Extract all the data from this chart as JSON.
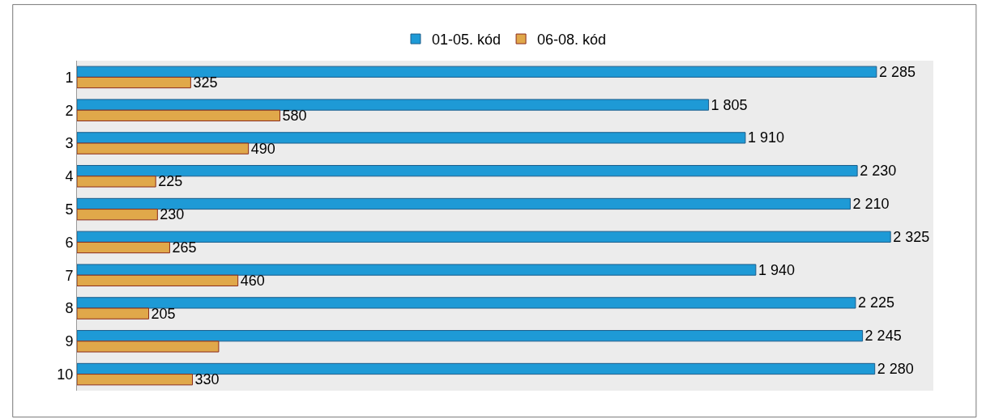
{
  "chart_data": {
    "type": "bar",
    "orientation": "horizontal",
    "categories": [
      "1",
      "2",
      "3",
      "4",
      "5",
      "6",
      "7",
      "8",
      "9",
      "10"
    ],
    "series": [
      {
        "name": "01-05. kód",
        "color": "#1e9ad6",
        "values": [
          2285,
          1805,
          1910,
          2230,
          2210,
          2325,
          1940,
          2225,
          2245,
          2280
        ],
        "value_labels": [
          "2 285",
          "1 805",
          "1 910",
          "2 230",
          "2 210",
          "2 325",
          "1 940",
          "2 225",
          "2 245",
          "2 280"
        ]
      },
      {
        "name": "06-08. kód",
        "color": "#e0a84a",
        "values": [
          325,
          580,
          490,
          225,
          230,
          265,
          460,
          205,
          405,
          330
        ],
        "value_labels": [
          "325",
          "580",
          "490",
          "225",
          "230",
          "265",
          "460",
          "205",
          null,
          "330"
        ]
      }
    ],
    "legend": "top"
  }
}
